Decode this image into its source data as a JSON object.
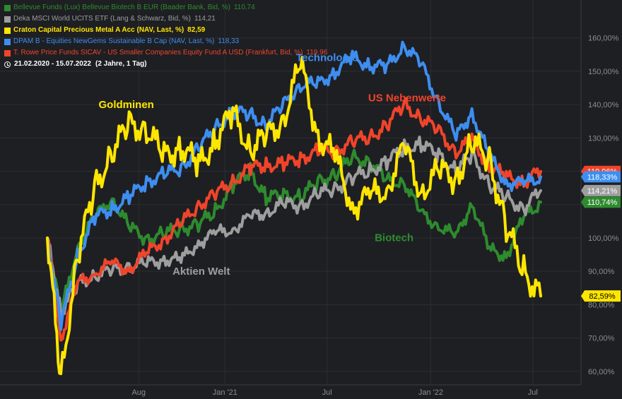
{
  "legend": [
    {
      "label": "Bellevue Funds (Lux) Bellevue Biotech B EUR (Baader Bank, Bid, %)",
      "value": "110,74",
      "color": "#2e8b2e",
      "bold": false
    },
    {
      "label": "Deka MSCI World UCITS ETF (Lang & Schwarz, Bid, %)",
      "value": "114,21",
      "color": "#9e9e9e",
      "bold": false
    },
    {
      "label": "Craton Capital Precious Metal A Acc (NAV, Last, %)",
      "value": "82,59",
      "color": "#ffe600",
      "bold": true
    },
    {
      "label": "DPAM B - Equities NewGems Sustainable B Cap (NAV, Last, %)",
      "value": "118,33",
      "color": "#3d8ef0",
      "bold": false
    },
    {
      "label": "T. Rowe Price Funds SICAV - US Smaller Companies Equity Fund A USD (Frankfurt, Bid, %)",
      "value": "119,96",
      "color": "#f0442a",
      "bold": false
    }
  ],
  "date_range": "21.02.2020 - 15.07.2022",
  "period": "(2 Jahre, 1 Tag)",
  "chart_data": {
    "type": "line",
    "x_ticks": [
      "Aug",
      "Jan '21",
      "Jul",
      "Jan '22",
      "Jul"
    ],
    "y_ticks": [
      "60,00%",
      "70,00%",
      "80,00%",
      "90,00%",
      "100,00%",
      "110,00%",
      "120,00%",
      "130,00%",
      "140,00%",
      "150,00%",
      "160,00%"
    ],
    "ylim": [
      57,
      165
    ],
    "date_start": "2020-02-21",
    "date_end": "2022-07-15",
    "annotations": [
      {
        "text": "Goldminen",
        "color": "#ffe600",
        "x": "2020-07-10",
        "y": 139
      },
      {
        "text": "Technologie",
        "color": "#3d8ef0",
        "x": "2021-07-01",
        "y": 153
      },
      {
        "text": "US Nebenwerte",
        "color": "#f0442a",
        "x": "2021-11-20",
        "y": 141
      },
      {
        "text": "Aktien Welt",
        "color": "#9e9e9e",
        "x": "2020-11-20",
        "y": 89
      },
      {
        "text": "Biotech",
        "color": "#2e8b2e",
        "x": "2021-10-28",
        "y": 99
      }
    ],
    "end_labels": [
      {
        "text": "119,96%",
        "value": 119.96,
        "bg": "#f0442a",
        "fg": "#ffffff"
      },
      {
        "text": "118,33%",
        "value": 118.33,
        "bg": "#3d8ef0",
        "fg": "#ffffff"
      },
      {
        "text": "114,21%",
        "value": 114.21,
        "bg": "#9e9e9e",
        "fg": "#ffffff"
      },
      {
        "text": "110,74%",
        "value": 110.74,
        "bg": "#2e8b2e",
        "fg": "#ffffff"
      },
      {
        "text": "82,59%",
        "value": 82.59,
        "bg": "#ffe600",
        "fg": "#000000"
      }
    ],
    "series": [
      {
        "name": "Biotech",
        "color": "#2e8b2e",
        "x": [
          "2020-02-21",
          "2020-03-16",
          "2020-04-15",
          "2020-05-15",
          "2020-06-15",
          "2020-07-15",
          "2020-08-15",
          "2020-09-15",
          "2020-10-15",
          "2020-11-15",
          "2020-12-15",
          "2021-01-15",
          "2021-02-15",
          "2021-03-15",
          "2021-04-15",
          "2021-05-15",
          "2021-06-15",
          "2021-07-15",
          "2021-08-15",
          "2021-09-15",
          "2021-10-15",
          "2021-11-15",
          "2021-12-15",
          "2022-01-15",
          "2022-02-15",
          "2022-03-15",
          "2022-04-15",
          "2022-05-15",
          "2022-06-15",
          "2022-07-15"
        ],
        "y": [
          100,
          77,
          98,
          106,
          112,
          103,
          100,
          101,
          103,
          104,
          108,
          116,
          120,
          112,
          113,
          112,
          117,
          119,
          124,
          123,
          117,
          117,
          107,
          104,
          100,
          111,
          96,
          95,
          106,
          110.74
        ]
      },
      {
        "name": "Aktien Welt",
        "color": "#9e9e9e",
        "x": [
          "2020-02-21",
          "2020-03-16",
          "2020-04-15",
          "2020-05-15",
          "2020-06-15",
          "2020-07-15",
          "2020-08-15",
          "2020-09-15",
          "2020-10-15",
          "2020-11-15",
          "2020-12-15",
          "2021-01-15",
          "2021-02-15",
          "2021-03-15",
          "2021-04-15",
          "2021-05-15",
          "2021-06-15",
          "2021-07-15",
          "2021-08-15",
          "2021-09-15",
          "2021-10-15",
          "2021-11-15",
          "2021-12-15",
          "2022-01-15",
          "2022-02-15",
          "2022-03-15",
          "2022-04-15",
          "2022-05-15",
          "2022-06-15",
          "2022-07-15"
        ],
        "y": [
          100,
          78,
          86,
          89,
          90,
          92,
          92,
          94,
          93,
          99,
          101,
          103,
          106,
          108,
          110,
          110,
          113,
          115,
          118,
          120,
          123,
          127,
          128,
          125,
          120,
          125,
          116,
          112,
          109,
          114.21
        ]
      },
      {
        "name": "Goldminen",
        "color": "#ffe600",
        "x": [
          "2020-02-21",
          "2020-03-16",
          "2020-04-15",
          "2020-05-15",
          "2020-06-15",
          "2020-07-15",
          "2020-08-15",
          "2020-09-15",
          "2020-10-15",
          "2020-11-15",
          "2020-12-15",
          "2021-01-15",
          "2021-02-15",
          "2021-03-15",
          "2021-04-15",
          "2021-05-15",
          "2021-06-15",
          "2021-07-15",
          "2021-08-15",
          "2021-09-15",
          "2021-10-15",
          "2021-11-15",
          "2021-12-15",
          "2022-01-15",
          "2022-02-15",
          "2022-03-15",
          "2022-04-15",
          "2022-05-15",
          "2022-06-15",
          "2022-07-15"
        ],
        "y": [
          100,
          58,
          95,
          115,
          126,
          134,
          133,
          124,
          128,
          121,
          130,
          137,
          127,
          130,
          136,
          152,
          131,
          124,
          110,
          112,
          115,
          127,
          114,
          120,
          118,
          128,
          124,
          103,
          90,
          82.59
        ]
      },
      {
        "name": "Technologie",
        "color": "#3d8ef0",
        "x": [
          "2020-02-21",
          "2020-03-16",
          "2020-04-15",
          "2020-05-15",
          "2020-06-15",
          "2020-07-15",
          "2020-08-15",
          "2020-09-15",
          "2020-10-15",
          "2020-11-15",
          "2020-12-15",
          "2021-01-15",
          "2021-02-15",
          "2021-03-15",
          "2021-04-15",
          "2021-05-15",
          "2021-06-15",
          "2021-07-15",
          "2021-08-15",
          "2021-09-15",
          "2021-10-15",
          "2021-11-15",
          "2021-12-15",
          "2022-01-15",
          "2022-02-15",
          "2022-03-15",
          "2022-04-15",
          "2022-05-15",
          "2022-06-15",
          "2022-07-15"
        ],
        "y": [
          100,
          74,
          95,
          106,
          109,
          112,
          117,
          119,
          121,
          127,
          133,
          138,
          137,
          134,
          140,
          146,
          146,
          150,
          154,
          152,
          151,
          158,
          152,
          141,
          130,
          138,
          124,
          117,
          116,
          118.33
        ]
      },
      {
        "name": "US Nebenwerte",
        "color": "#f0442a",
        "x": [
          "2020-02-21",
          "2020-03-16",
          "2020-04-15",
          "2020-05-15",
          "2020-06-15",
          "2020-07-15",
          "2020-08-15",
          "2020-09-15",
          "2020-10-15",
          "2020-11-15",
          "2020-12-15",
          "2021-01-15",
          "2021-02-15",
          "2021-03-15",
          "2021-04-15",
          "2021-05-15",
          "2021-06-15",
          "2021-07-15",
          "2021-08-15",
          "2021-09-15",
          "2021-10-15",
          "2021-11-15",
          "2021-12-15",
          "2022-01-15",
          "2022-02-15",
          "2022-03-15",
          "2022-04-15",
          "2022-05-15",
          "2022-06-15",
          "2022-07-15"
        ],
        "y": [
          100,
          70,
          86,
          90,
          92,
          91,
          95,
          100,
          104,
          110,
          113,
          117,
          121,
          122,
          122,
          124,
          126,
          126,
          129,
          130,
          134,
          140,
          136,
          132,
          126,
          129,
          122,
          118,
          117,
          119.96
        ]
      }
    ]
  }
}
